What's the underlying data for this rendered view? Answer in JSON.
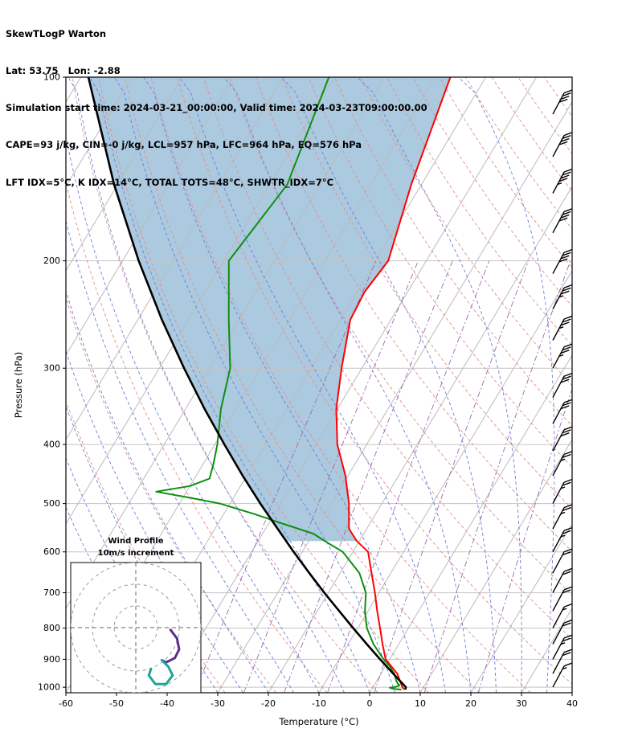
{
  "header": {
    "title": "SkewTLogP Warton",
    "location": "Lat: 53.75   Lon: -2.88",
    "times": "Simulation start time: 2024-03-21_00:00:00, Valid time: 2024-03-23T09:00:00.00",
    "indices1": "CAPE=93 j/kg, CIN=-0 j/kg, LCL=957 hPa, LFC=964 hPa, EQ=576 hPa",
    "indices2": "LFT IDX=5°C, K IDX=14°C, TOTAL TOTS=48°C, SHWTR_IDX=7°C"
  },
  "chart_data": {
    "type": "skewt_logp",
    "xlabel": "Temperature (°C)",
    "ylabel": "Pressure (hPa)",
    "xlim": [
      -60,
      40
    ],
    "x_ticks": [
      -60,
      -50,
      -40,
      -30,
      -20,
      -10,
      0,
      10,
      20,
      30,
      40
    ],
    "y_ticks": [
      100,
      200,
      300,
      400,
      500,
      600,
      700,
      800,
      900,
      1000
    ],
    "p_range": [
      100,
      1021
    ],
    "skew_ratio": 0.6,
    "profiles": {
      "temperature": {
        "color": "#ff0000",
        "points": [
          [
            1009,
            6.5
          ],
          [
            1000,
            5.8
          ],
          [
            950,
            3.2
          ],
          [
            900,
            -0.8
          ],
          [
            850,
            -3.2
          ],
          [
            800,
            -5.6
          ],
          [
            750,
            -8.2
          ],
          [
            700,
            -10.8
          ],
          [
            650,
            -13.8
          ],
          [
            600,
            -17.0
          ],
          [
            576,
            -20.5
          ],
          [
            550,
            -23.5
          ],
          [
            500,
            -26.5
          ],
          [
            450,
            -30.5
          ],
          [
            400,
            -35.8
          ],
          [
            350,
            -40.2
          ],
          [
            300,
            -44.0
          ],
          [
            250,
            -48.0
          ],
          [
            225,
            -48.5
          ],
          [
            200,
            -47.5
          ],
          [
            150,
            -52.0
          ],
          [
            100,
            -57.0
          ]
        ]
      },
      "dewpoint": {
        "color": "#0f8f0f",
        "points": [
          [
            1009,
            5.9
          ],
          [
            1006,
            4.2
          ],
          [
            1002,
            3.4
          ],
          [
            998,
            4.6
          ],
          [
            993,
            5.0
          ],
          [
            985,
            4.4
          ],
          [
            975,
            3.8
          ],
          [
            950,
            2.6
          ],
          [
            925,
            0.9
          ],
          [
            900,
            -1.2
          ],
          [
            850,
            -5.0
          ],
          [
            800,
            -8.2
          ],
          [
            750,
            -10.6
          ],
          [
            700,
            -12.6
          ],
          [
            650,
            -16.2
          ],
          [
            600,
            -22.0
          ],
          [
            580,
            -26.0
          ],
          [
            560,
            -30.0
          ],
          [
            540,
            -37.0
          ],
          [
            520,
            -44.0
          ],
          [
            500,
            -52.0
          ],
          [
            490,
            -58.0
          ],
          [
            478,
            -66.0
          ],
          [
            468,
            -60.0
          ],
          [
            455,
            -57.0
          ],
          [
            430,
            -58.0
          ],
          [
            400,
            -59.5
          ],
          [
            350,
            -63.0
          ],
          [
            300,
            -66.0
          ],
          [
            250,
            -72.0
          ],
          [
            200,
            -79.0
          ],
          [
            150,
            -76.5
          ],
          [
            100,
            -81.0
          ]
        ]
      },
      "parcel": {
        "color": "#000000",
        "points": [
          [
            1009,
            6.7
          ],
          [
            1000,
            6.5
          ],
          [
            950,
            2.4
          ],
          [
            900,
            -1.9
          ],
          [
            850,
            -6.3
          ],
          [
            800,
            -10.9
          ],
          [
            750,
            -15.7
          ],
          [
            700,
            -20.8
          ],
          [
            650,
            -26.1
          ],
          [
            600,
            -31.7
          ],
          [
            550,
            -37.6
          ],
          [
            500,
            -44.0
          ],
          [
            450,
            -50.8
          ],
          [
            400,
            -58.1
          ],
          [
            350,
            -66.2
          ],
          [
            300,
            -75.1
          ],
          [
            250,
            -85.2
          ],
          [
            200,
            -96.8
          ],
          [
            150,
            -110.7
          ],
          [
            100,
            -128.5
          ]
        ]
      }
    },
    "cape_area": {
      "color": "#a6c6dd",
      "p_top": 100,
      "p_bottom": 576,
      "between": [
        "parcel",
        "temperature"
      ]
    },
    "background": {
      "pressure_line": {
        "color": "#c5c5c5"
      },
      "isotherm": {
        "color": "#bbbbbb",
        "start": -130,
        "end": 40,
        "step": 10
      },
      "dry_adiabat": {
        "color": "#e08f8f",
        "theta_start": -30,
        "theta_end": 180,
        "step": 10
      },
      "moist_adiabat": {
        "color": "#6f7fd8",
        "t_start": -40,
        "t_end": 40,
        "step": 5
      },
      "mixing_ratio": {
        "color": "#9a6bb5",
        "values": [
          0.2,
          0.5,
          1,
          2,
          4,
          8,
          16
        ],
        "p_min": 200
      }
    },
    "wind_barbs": {
      "color": "#000000",
      "unit": "kt",
      "levels": [
        {
          "p": 115,
          "kt": 40
        },
        {
          "p": 135,
          "kt": 40
        },
        {
          "p": 155,
          "kt": 45
        },
        {
          "p": 180,
          "kt": 40
        },
        {
          "p": 210,
          "kt": 40
        },
        {
          "p": 240,
          "kt": 35
        },
        {
          "p": 270,
          "kt": 35
        },
        {
          "p": 300,
          "kt": 35
        },
        {
          "p": 335,
          "kt": 30
        },
        {
          "p": 370,
          "kt": 30
        },
        {
          "p": 410,
          "kt": 30
        },
        {
          "p": 450,
          "kt": 25
        },
        {
          "p": 500,
          "kt": 25
        },
        {
          "p": 550,
          "kt": 25
        },
        {
          "p": 600,
          "kt": 25
        },
        {
          "p": 650,
          "kt": 20
        },
        {
          "p": 700,
          "kt": 20
        },
        {
          "p": 750,
          "kt": 20
        },
        {
          "p": 800,
          "kt": 15
        },
        {
          "p": 850,
          "kt": 20
        },
        {
          "p": 900,
          "kt": 25
        },
        {
          "p": 950,
          "kt": 20
        },
        {
          "p": 1000,
          "kt": 15
        }
      ]
    },
    "hodograph": {
      "title": "Wind Profile",
      "subtitle": "10m/s increment",
      "ring_interval_ms": 10,
      "rings": [
        10,
        20,
        30
      ],
      "segments": [
        {
          "color": "#5b2d8e",
          "pts": [
            [
              16,
              1
            ],
            [
              19,
              5
            ],
            [
              20,
              10
            ],
            [
              18,
              14
            ],
            [
              14,
              16
            ],
            [
              12,
              15
            ]
          ]
        },
        {
          "color": "#1fa596",
          "pts": [
            [
              12,
              15
            ],
            [
              15,
              18
            ],
            [
              17,
              22
            ],
            [
              14,
              26
            ],
            [
              9,
              26
            ],
            [
              6,
              22
            ],
            [
              7,
              19
            ]
          ]
        }
      ]
    }
  }
}
